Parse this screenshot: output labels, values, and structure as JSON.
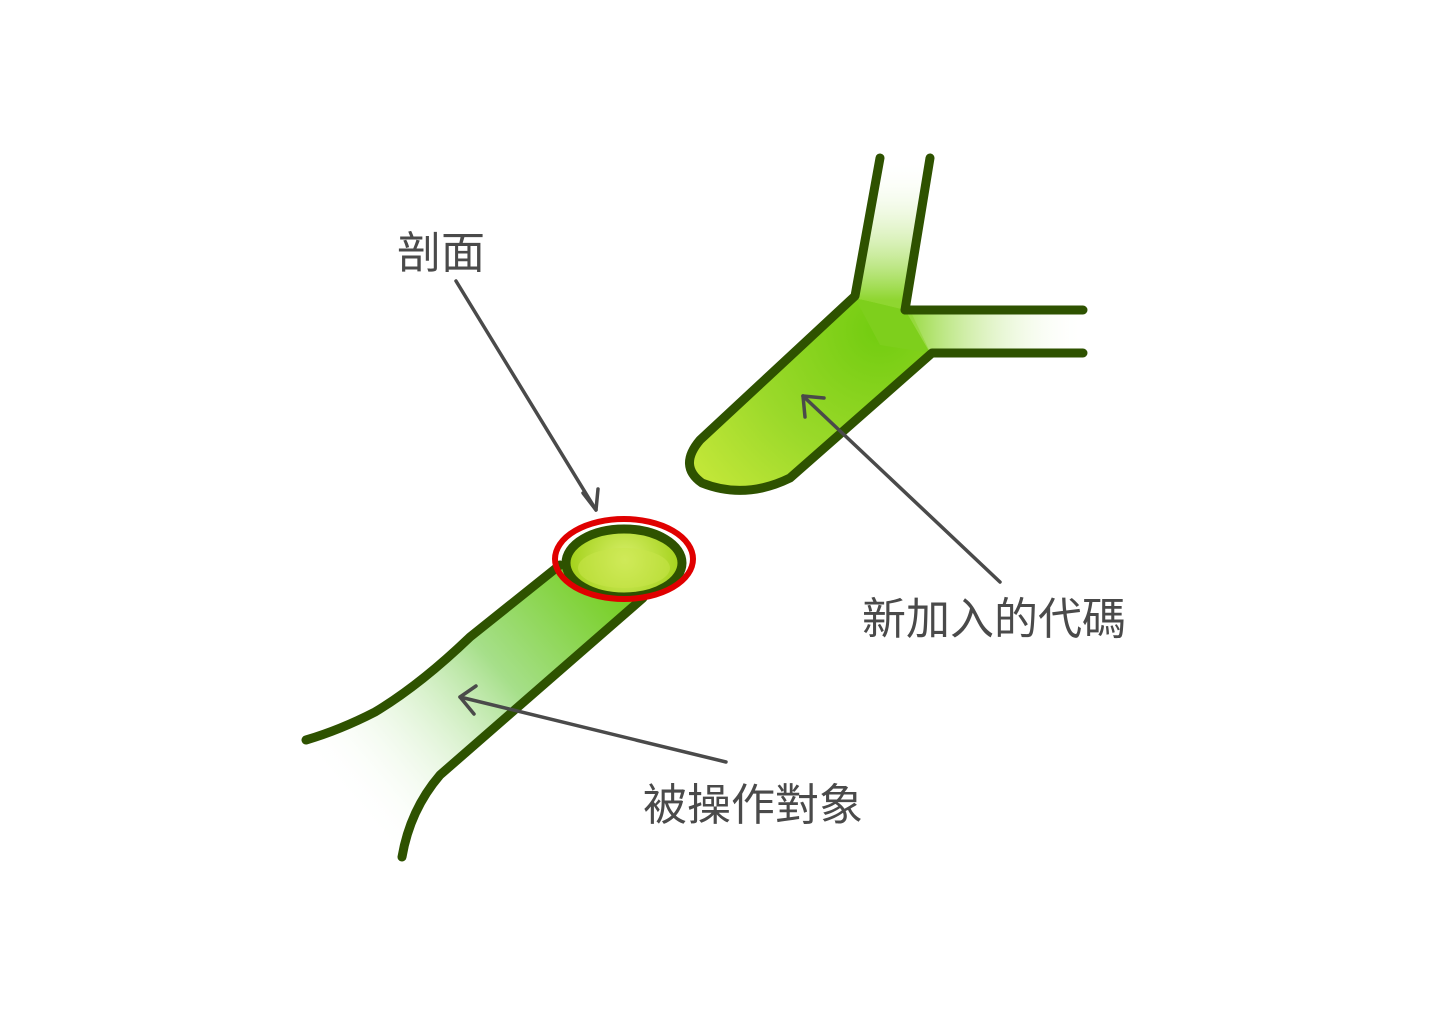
{
  "labels": {
    "cross_section": "剖面",
    "new_code": "新加入的代碼",
    "operated_object": "被操作對象"
  },
  "colors": {
    "outline": "#2e5200",
    "green_light": "#c6e83a",
    "green_mid": "#76cc1a",
    "highlight_ring": "#e00000",
    "annotation": "#4a4a4a"
  }
}
